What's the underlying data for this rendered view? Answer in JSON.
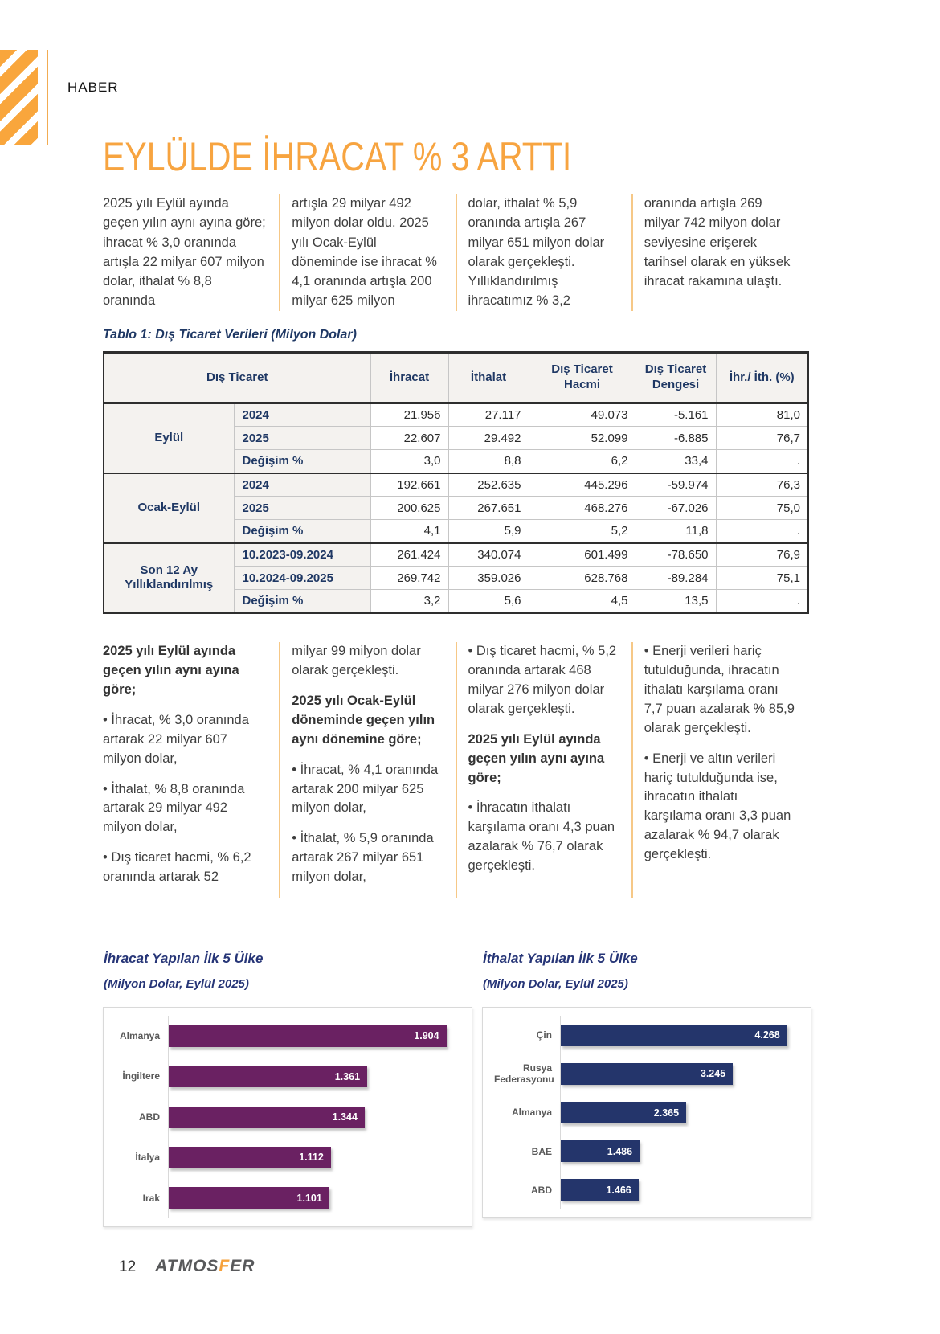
{
  "header": {
    "section_label": "HABER",
    "title": "EYLÜLDE İHRACAT % 3 ARTTI"
  },
  "colors": {
    "accent_orange": "#F7A440",
    "navy_text": "#1F3864",
    "chart_title_blue": "#263577",
    "export_bar": "#6A2162",
    "import_bar": "#24356B"
  },
  "intro_columns": [
    "2025 yılı Eylül ayında geçen yılın aynı ayına göre; ihracat % 3,0 oranında artışla 22 milyar 607 milyon dolar, ithalat % 8,8 oranında",
    "artışla 29 milyar 492 milyon dolar oldu. 2025 yılı Ocak-Eylül döneminde ise ihracat % 4,1 oranında artışla 200 milyar 625 milyon",
    "dolar, ithalat % 5,9 oranında artışla 267 milyar 651 milyon dolar olarak gerçekleşti. Yıllıklandırılmış ihracatımız % 3,2",
    "oranında artışla 269 milyar 742 milyon dolar seviyesine erişerek tarihsel olarak en yüksek ihracat rakamına ulaştı."
  ],
  "table": {
    "caption": "Tablo 1: Dış Ticaret Verileri (Milyon Dolar)",
    "headers": [
      "Dış Ticaret",
      "İhracat",
      "İthalat",
      "Dış Ticaret Hacmi",
      "Dış Ticaret Dengesi",
      "İhr./ İth. (%)"
    ],
    "groups": [
      {
        "label": "Eylül",
        "rows": [
          {
            "period": "2024",
            "values": [
              "21.956",
              "27.117",
              "49.073",
              "-5.161",
              "81,0"
            ]
          },
          {
            "period": "2025",
            "values": [
              "22.607",
              "29.492",
              "52.099",
              "-6.885",
              "76,7"
            ]
          },
          {
            "period": "Değişim %",
            "values": [
              "3,0",
              "8,8",
              "6,2",
              "33,4",
              "."
            ]
          }
        ]
      },
      {
        "label": "Ocak-Eylül",
        "rows": [
          {
            "period": "2024",
            "values": [
              "192.661",
              "252.635",
              "445.296",
              "-59.974",
              "76,3"
            ]
          },
          {
            "period": "2025",
            "values": [
              "200.625",
              "267.651",
              "468.276",
              "-67.026",
              "75,0"
            ]
          },
          {
            "period": "Değişim %",
            "values": [
              "4,1",
              "5,9",
              "5,2",
              "11,8",
              "."
            ]
          }
        ]
      },
      {
        "label": "Son 12 Ay Yıllıklandırılmış",
        "rows": [
          {
            "period": "10.2023-09.2024",
            "values": [
              "261.424",
              "340.074",
              "601.499",
              "-78.650",
              "76,9"
            ]
          },
          {
            "period": "10.2024-09.2025",
            "values": [
              "269.742",
              "359.026",
              "628.768",
              "-89.284",
              "75,1"
            ]
          },
          {
            "period": "Değişim %",
            "values": [
              "3,2",
              "5,6",
              "4,5",
              "13,5",
              "."
            ]
          }
        ]
      }
    ]
  },
  "analysis_columns": [
    [
      {
        "kind": "heading",
        "text": "2025 yılı Eylül ayında geçen yılın aynı ayına göre;"
      },
      {
        "kind": "bullet",
        "text": "İhracat, % 3,0 oranında artarak 22 milyar 607 milyon dolar,"
      },
      {
        "kind": "bullet",
        "text": "İthalat, % 8,8 oranında artarak 29 milyar 492 milyon dolar,"
      },
      {
        "kind": "bullet",
        "text": "Dış ticaret hacmi, % 6,2 oranında artarak 52"
      }
    ],
    [
      {
        "kind": "para",
        "text": "milyar 99 milyon dolar olarak gerçekleşti."
      },
      {
        "kind": "heading",
        "text": "2025 yılı Ocak-Eylül döneminde geçen yılın aynı dönemine göre;"
      },
      {
        "kind": "bullet",
        "text": "İhracat, % 4,1 oranında artarak 200 milyar 625 milyon dolar,"
      },
      {
        "kind": "bullet",
        "text": "İthalat, % 5,9 oranında artarak 267 milyar 651 milyon dolar,"
      }
    ],
    [
      {
        "kind": "bullet",
        "text": "Dış ticaret hacmi, % 5,2 oranında artarak 468 milyar 276 milyon dolar olarak gerçekleşti."
      },
      {
        "kind": "heading",
        "text": "2025 yılı Eylül ayında geçen yılın aynı ayına göre;"
      },
      {
        "kind": "bullet",
        "text": "İhracatın ithalatı karşılama oranı 4,3 puan azalarak % 76,7 olarak gerçekleşti."
      }
    ],
    [
      {
        "kind": "bullet",
        "text": "Enerji verileri hariç tutulduğunda, ihracatın ithalatı karşılama oranı 7,7 puan azalarak % 85,9 olarak gerçekleşti."
      },
      {
        "kind": "bullet",
        "text": "Enerji ve altın verileri hariç tutulduğunda ise, ihracatın ithalatı karşılama oranı 3,3 puan azalarak % 94,7 olarak gerçekleşti."
      }
    ]
  ],
  "chart_data": [
    {
      "type": "bar",
      "orientation": "horizontal",
      "title": "İhracat Yapılan İlk 5 Ülke",
      "subtitle": "(Milyon Dolar, Eylül 2025)",
      "categories": [
        "Almanya",
        "İngiltere",
        "ABD",
        "İtalya",
        "Irak"
      ],
      "values": [
        1904,
        1361,
        1344,
        1112,
        1101
      ],
      "value_labels": [
        "1.904",
        "1.361",
        "1.344",
        "1.112",
        "1.101"
      ],
      "bar_color": "#6A2162",
      "xlim": [
        0,
        2000
      ],
      "grid": false,
      "legend": "none"
    },
    {
      "type": "bar",
      "orientation": "horizontal",
      "title": "İthalat Yapılan İlk 5 Ülke",
      "subtitle": "(Milyon Dolar, Eylül 2025)",
      "categories": [
        "Çin",
        "Rusya Federasyonu",
        "Almanya",
        "BAE",
        "ABD"
      ],
      "values": [
        4268,
        3245,
        2365,
        1486,
        1466
      ],
      "value_labels": [
        "4.268",
        "3.245",
        "2.365",
        "1.486",
        "1.466"
      ],
      "bar_color": "#24356B",
      "xlim": [
        0,
        4500
      ],
      "grid": false,
      "legend": "none"
    }
  ],
  "footer": {
    "page_number": "12",
    "brand_pre": "ATMOS",
    "brand_accent": "F",
    "brand_post": "ER"
  }
}
